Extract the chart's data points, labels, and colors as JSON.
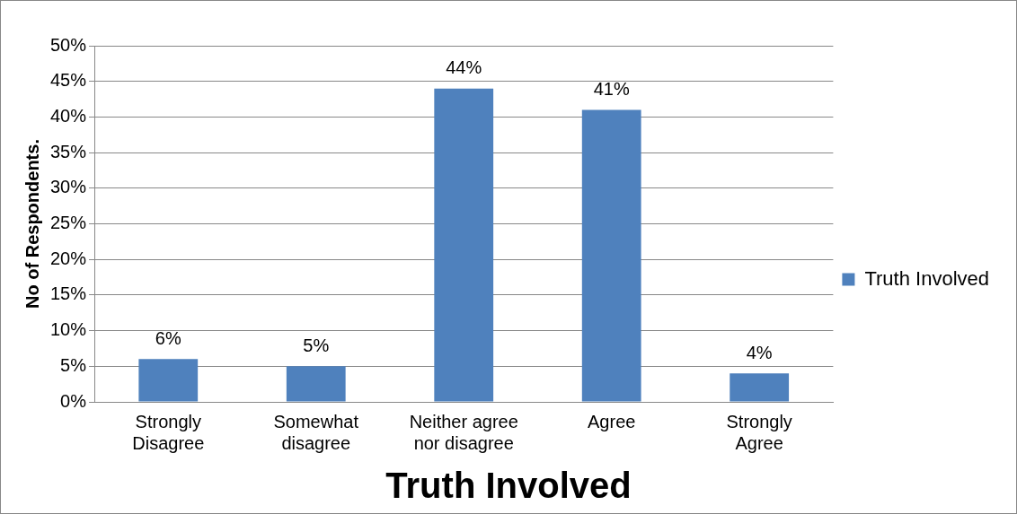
{
  "chart_data": {
    "type": "bar",
    "title": "Truth Involved",
    "ylabel": "No of Respondents.",
    "categories": [
      "Strongly Disagree",
      "Somewhat disagree",
      "Neither agree nor disagree",
      "Agree",
      "Strongly Agree"
    ],
    "series": [
      {
        "name": "Truth Involved",
        "color": "#4f81bd",
        "values": [
          6,
          5,
          44,
          41,
          4
        ],
        "value_labels": [
          "6%",
          "5%",
          "44%",
          "41%",
          "4%"
        ]
      }
    ],
    "ylim": [
      0,
      50
    ],
    "yticks": [
      {
        "value": 0,
        "label": "0%"
      },
      {
        "value": 5,
        "label": "5%"
      },
      {
        "value": 10,
        "label": "10%"
      },
      {
        "value": 15,
        "label": "15%"
      },
      {
        "value": 20,
        "label": "20%"
      },
      {
        "value": 25,
        "label": "25%"
      },
      {
        "value": 30,
        "label": "30%"
      },
      {
        "value": 35,
        "label": "35%"
      },
      {
        "value": 40,
        "label": "40%"
      },
      {
        "value": 45,
        "label": "45%"
      },
      {
        "value": 50,
        "label": "50%"
      }
    ],
    "grid": "y",
    "legend": "right"
  }
}
